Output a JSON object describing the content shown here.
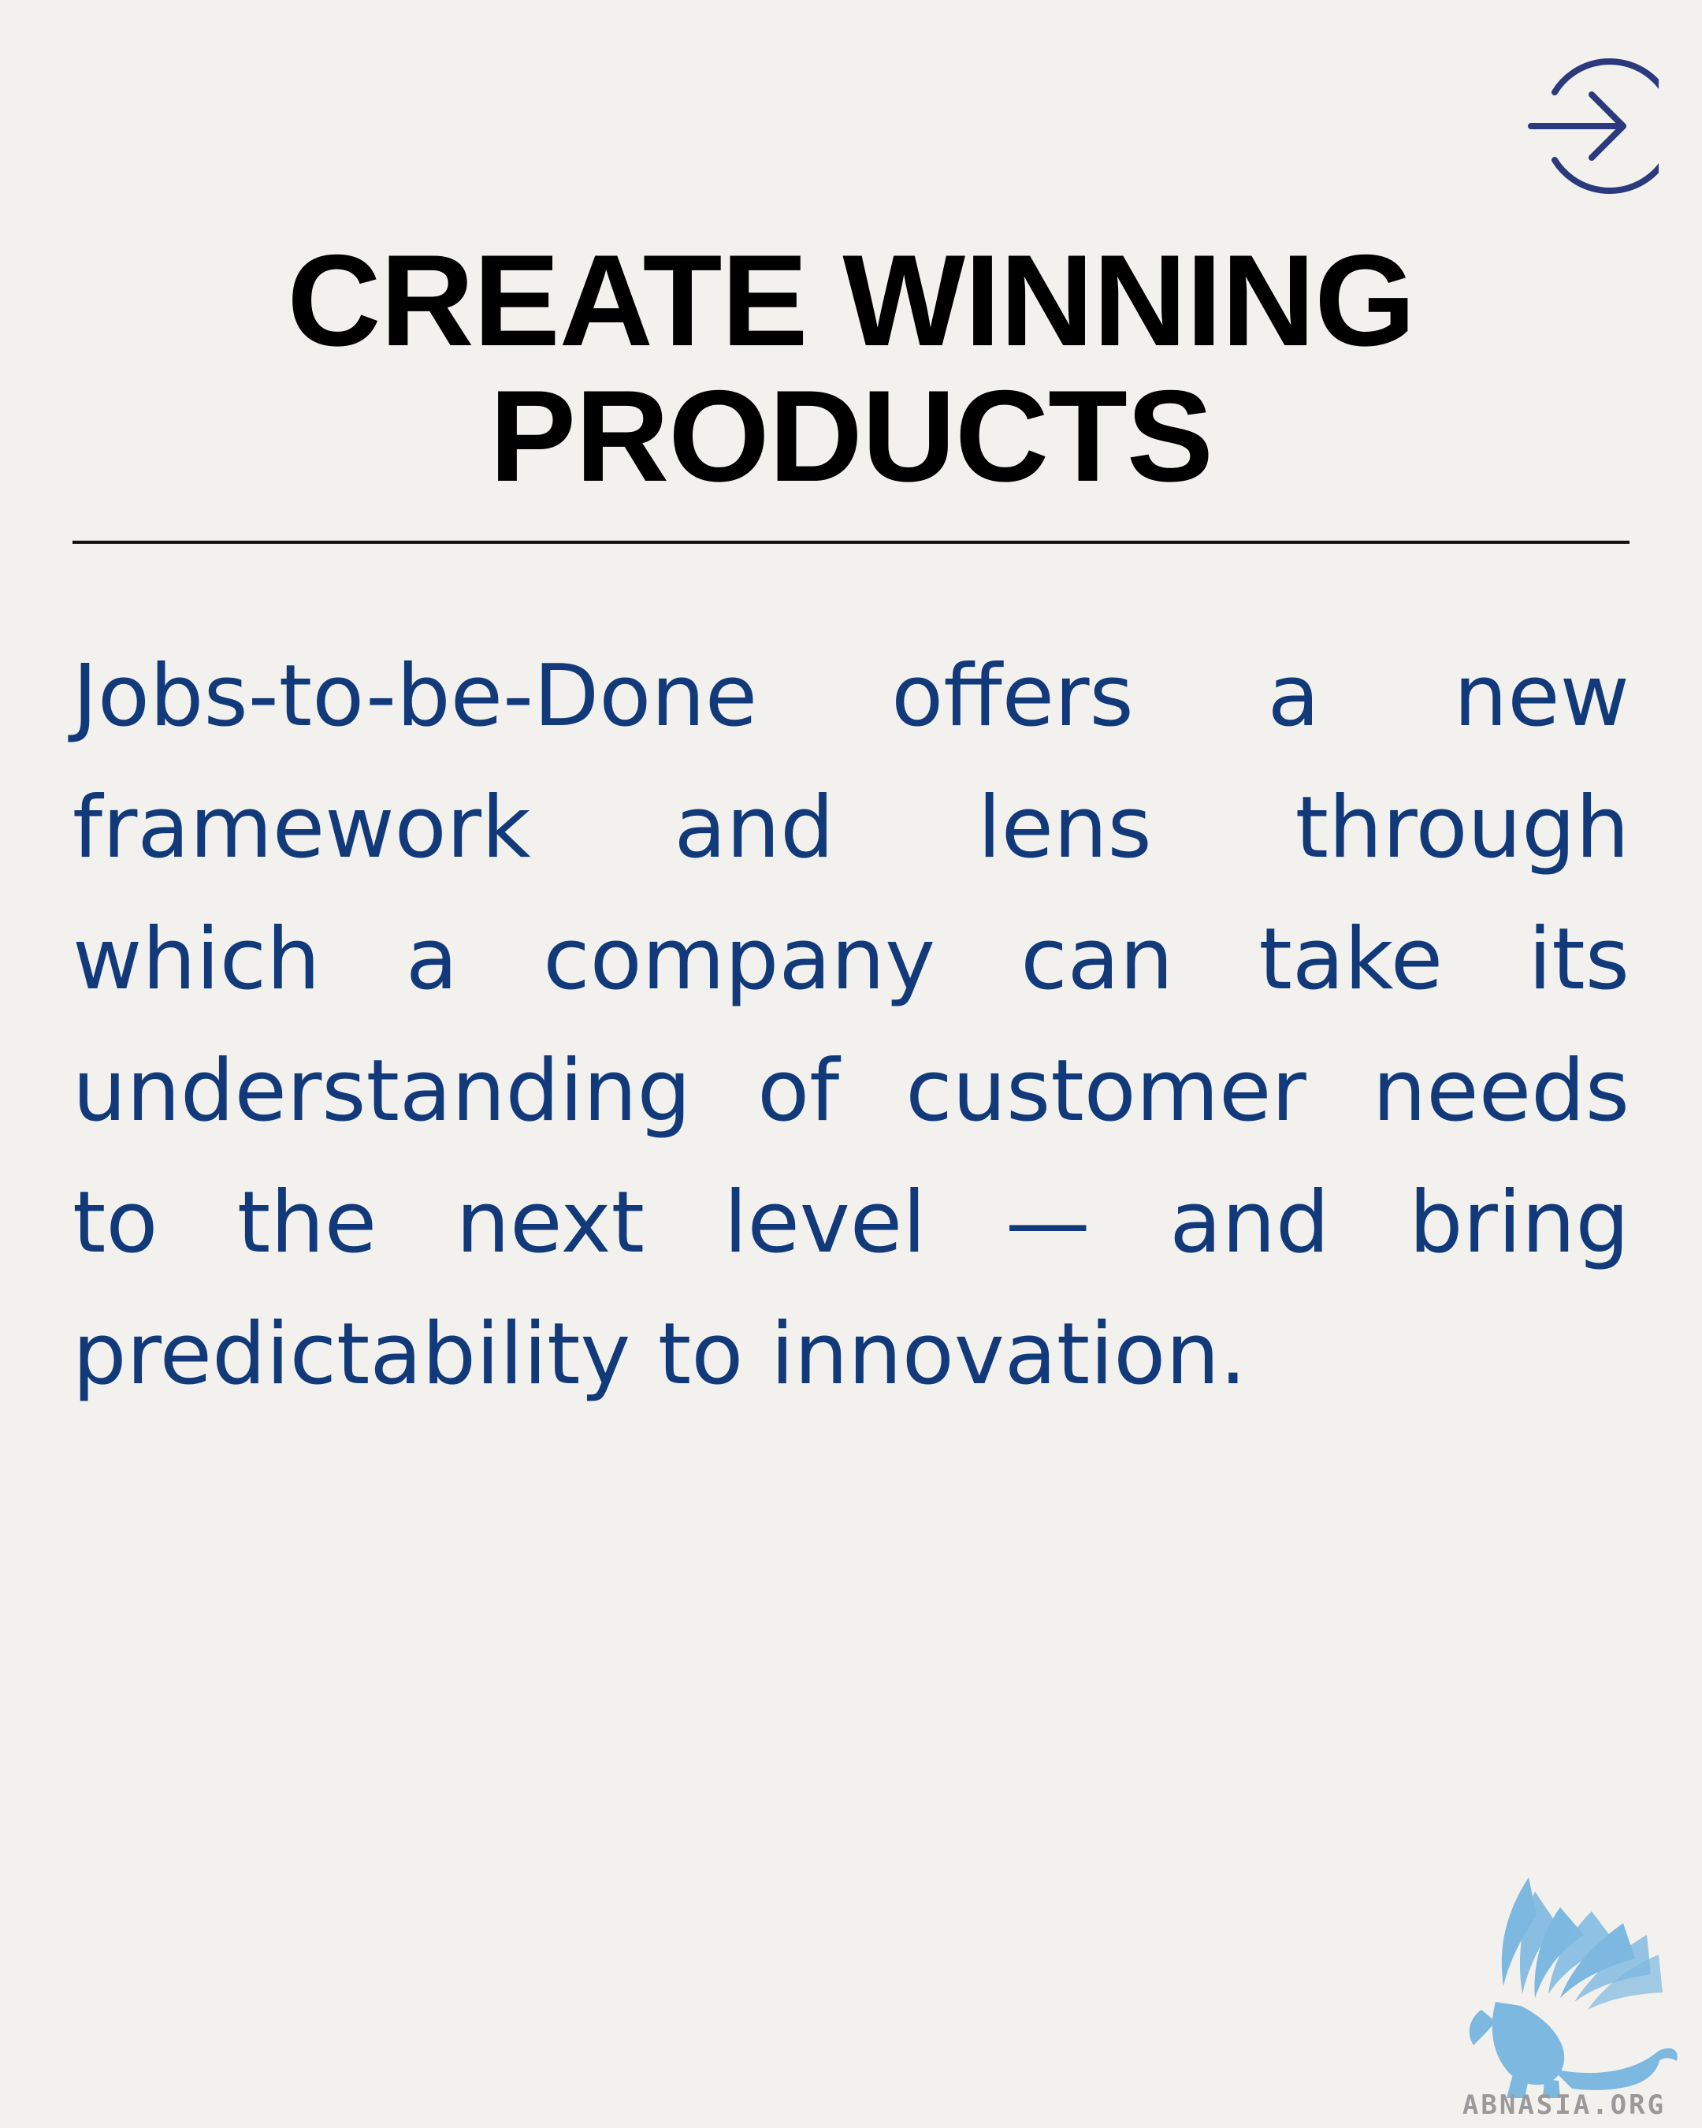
{
  "navigation": {
    "next_icon": "arrow-right-circle-icon"
  },
  "heading": {
    "line1": "CREATE WINNING",
    "line2": "PRODUCTS"
  },
  "body": {
    "lines": [
      [
        "Jobs-to-be-Done",
        "offers",
        "a",
        "new"
      ],
      [
        "framework",
        "and",
        "lens",
        "through"
      ],
      [
        "which",
        "a",
        "company",
        "can",
        "take",
        "its"
      ],
      [
        "understanding",
        "of",
        "customer",
        "needs"
      ],
      [
        "to",
        "the",
        "next",
        "level",
        "—",
        "and",
        "bring"
      ],
      [
        "predictability",
        "to",
        "innovation."
      ]
    ]
  },
  "brand": {
    "logo_icon": "winged-lion-logo-icon",
    "site": "ABNASIA.ORG"
  },
  "colors": {
    "background": "#f2f1ed",
    "title": "#000000",
    "body_text": "#123a7a",
    "arrow": "#2b3a7c",
    "logo": "#7db8e0"
  }
}
